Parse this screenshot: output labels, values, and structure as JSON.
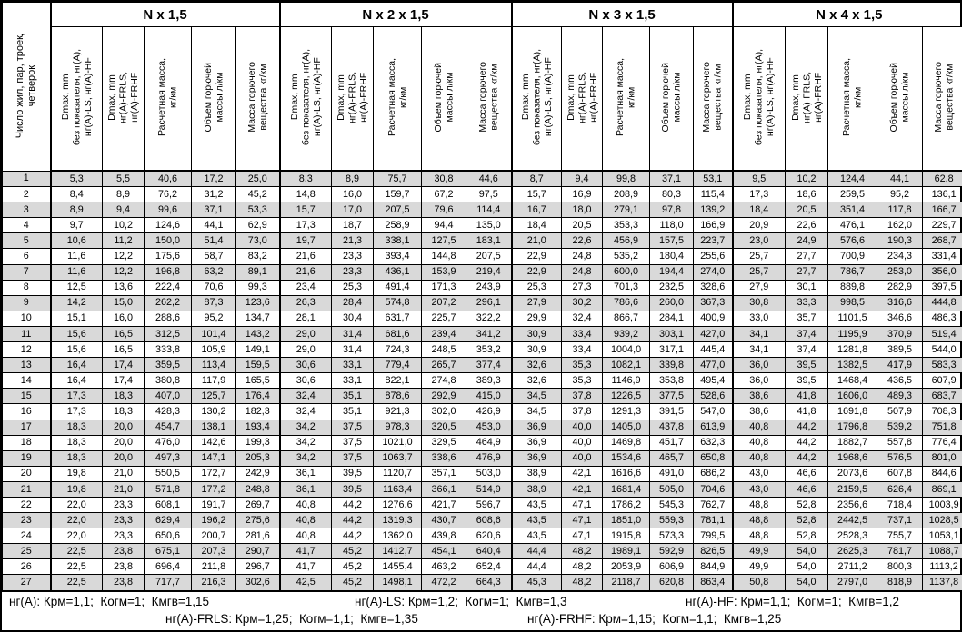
{
  "header": {
    "row_axis_label": "Число жил, пар, троек,\nчетверок",
    "groups": [
      {
        "title": "N x 1,5"
      },
      {
        "title": "N x 2 x 1,5"
      },
      {
        "title": "N x 3 x 1,5"
      },
      {
        "title": "N x 4 x 1,5"
      }
    ],
    "columns": [
      "Dmax, mm\nбез показателя, нг(А),\nнг(А)-LS, нг(А)-HF",
      "Dmax, mm\nнг(А)-FRLS,\nнг(А)-FRHF",
      "Расчетная масса,\nкг/км",
      "Объем горючей\nмассы л/км",
      "Масса горючего\nвещества кг/км"
    ]
  },
  "rows": [
    {
      "n": "1",
      "values": [
        "5,3",
        "5,5",
        "40,6",
        "17,2",
        "25,0",
        "8,3",
        "8,9",
        "75,7",
        "30,8",
        "44,6",
        "8,7",
        "9,4",
        "99,8",
        "37,1",
        "53,1",
        "9,5",
        "10,2",
        "124,4",
        "44,1",
        "62,8"
      ]
    },
    {
      "n": "2",
      "values": [
        "8,4",
        "8,9",
        "76,2",
        "31,2",
        "45,2",
        "14,8",
        "16,0",
        "159,7",
        "67,2",
        "97,5",
        "15,7",
        "16,9",
        "208,9",
        "80,3",
        "115,4",
        "17,3",
        "18,6",
        "259,5",
        "95,2",
        "136,1"
      ]
    },
    {
      "n": "3",
      "values": [
        "8,9",
        "9,4",
        "99,6",
        "37,1",
        "53,3",
        "15,7",
        "17,0",
        "207,5",
        "79,6",
        "114,4",
        "16,7",
        "18,0",
        "279,1",
        "97,8",
        "139,2",
        "18,4",
        "20,5",
        "351,4",
        "117,8",
        "166,7"
      ]
    },
    {
      "n": "4",
      "values": [
        "9,7",
        "10,2",
        "124,6",
        "44,1",
        "62,9",
        "17,3",
        "18,7",
        "258,9",
        "94,4",
        "135,0",
        "18,4",
        "20,5",
        "353,3",
        "118,0",
        "166,9",
        "20,9",
        "22,6",
        "476,1",
        "162,0",
        "229,7"
      ]
    },
    {
      "n": "5",
      "values": [
        "10,6",
        "11,2",
        "150,0",
        "51,4",
        "73,0",
        "19,7",
        "21,3",
        "338,1",
        "127,5",
        "183,1",
        "21,0",
        "22,6",
        "456,9",
        "157,5",
        "223,7",
        "23,0",
        "24,9",
        "576,6",
        "190,3",
        "268,7"
      ]
    },
    {
      "n": "6",
      "values": [
        "11,6",
        "12,2",
        "175,6",
        "58,7",
        "83,2",
        "21,6",
        "23,3",
        "393,4",
        "144,8",
        "207,5",
        "22,9",
        "24,8",
        "535,2",
        "180,4",
        "255,6",
        "25,7",
        "27,7",
        "700,9",
        "234,3",
        "331,4"
      ]
    },
    {
      "n": "7",
      "values": [
        "11,6",
        "12,2",
        "196,8",
        "63,2",
        "89,1",
        "21,6",
        "23,3",
        "436,1",
        "153,9",
        "219,4",
        "22,9",
        "24,8",
        "600,0",
        "194,4",
        "274,0",
        "25,7",
        "27,7",
        "786,7",
        "253,0",
        "356,0"
      ]
    },
    {
      "n": "8",
      "values": [
        "12,5",
        "13,6",
        "222,4",
        "70,6",
        "99,3",
        "23,4",
        "25,3",
        "491,4",
        "171,3",
        "243,9",
        "25,3",
        "27,3",
        "701,3",
        "232,5",
        "328,6",
        "27,9",
        "30,1",
        "889,8",
        "282,9",
        "397,5"
      ]
    },
    {
      "n": "9",
      "values": [
        "14,2",
        "15,0",
        "262,2",
        "87,3",
        "123,6",
        "26,3",
        "28,4",
        "574,8",
        "207,2",
        "296,1",
        "27,9",
        "30,2",
        "786,6",
        "260,0",
        "367,3",
        "30,8",
        "33,3",
        "998,5",
        "316,6",
        "444,8"
      ]
    },
    {
      "n": "10",
      "values": [
        "15,1",
        "16,0",
        "288,6",
        "95,2",
        "134,7",
        "28,1",
        "30,4",
        "631,7",
        "225,7",
        "322,2",
        "29,9",
        "32,4",
        "866,7",
        "284,1",
        "400,9",
        "33,0",
        "35,7",
        "1101,5",
        "346,6",
        "486,3"
      ]
    },
    {
      "n": "11",
      "values": [
        "15,6",
        "16,5",
        "312,5",
        "101,4",
        "143,2",
        "29,0",
        "31,4",
        "681,6",
        "239,4",
        "341,2",
        "30,9",
        "33,4",
        "939,2",
        "303,1",
        "427,0",
        "34,1",
        "37,4",
        "1195,9",
        "370,9",
        "519,4"
      ]
    },
    {
      "n": "12",
      "values": [
        "15,6",
        "16,5",
        "333,8",
        "105,9",
        "149,1",
        "29,0",
        "31,4",
        "724,3",
        "248,5",
        "353,2",
        "30,9",
        "33,4",
        "1004,0",
        "317,1",
        "445,4",
        "34,1",
        "37,4",
        "1281,8",
        "389,5",
        "544,0"
      ]
    },
    {
      "n": "13",
      "values": [
        "16,4",
        "17,4",
        "359,5",
        "113,4",
        "159,5",
        "30,6",
        "33,1",
        "779,4",
        "265,7",
        "377,4",
        "32,6",
        "35,3",
        "1082,1",
        "339,8",
        "477,0",
        "36,0",
        "39,5",
        "1382,5",
        "417,9",
        "583,3"
      ]
    },
    {
      "n": "14",
      "values": [
        "16,4",
        "17,4",
        "380,8",
        "117,9",
        "165,5",
        "30,6",
        "33,1",
        "822,1",
        "274,8",
        "389,3",
        "32,6",
        "35,3",
        "1146,9",
        "353,8",
        "495,4",
        "36,0",
        "39,5",
        "1468,4",
        "436,5",
        "607,9"
      ]
    },
    {
      "n": "15",
      "values": [
        "17,3",
        "18,3",
        "407,0",
        "125,7",
        "176,4",
        "32,4",
        "35,1",
        "878,6",
        "292,9",
        "415,0",
        "34,5",
        "37,8",
        "1226,5",
        "377,5",
        "528,6",
        "38,6",
        "41,8",
        "1606,0",
        "489,3",
        "683,7"
      ]
    },
    {
      "n": "16",
      "values": [
        "17,3",
        "18,3",
        "428,3",
        "130,2",
        "182,3",
        "32,4",
        "35,1",
        "921,3",
        "302,0",
        "426,9",
        "34,5",
        "37,8",
        "1291,3",
        "391,5",
        "547,0",
        "38,6",
        "41,8",
        "1691,8",
        "507,9",
        "708,3"
      ]
    },
    {
      "n": "17",
      "values": [
        "18,3",
        "20,0",
        "454,7",
        "138,1",
        "193,4",
        "34,2",
        "37,5",
        "978,3",
        "320,5",
        "453,0",
        "36,9",
        "40,0",
        "1405,0",
        "437,8",
        "613,9",
        "40,8",
        "44,2",
        "1796,8",
        "539,2",
        "751,8"
      ]
    },
    {
      "n": "18",
      "values": [
        "18,3",
        "20,0",
        "476,0",
        "142,6",
        "199,3",
        "34,2",
        "37,5",
        "1021,0",
        "329,5",
        "464,9",
        "36,9",
        "40,0",
        "1469,8",
        "451,7",
        "632,3",
        "40,8",
        "44,2",
        "1882,7",
        "557,8",
        "776,4"
      ]
    },
    {
      "n": "19",
      "values": [
        "18,3",
        "20,0",
        "497,3",
        "147,1",
        "205,3",
        "34,2",
        "37,5",
        "1063,7",
        "338,6",
        "476,9",
        "36,9",
        "40,0",
        "1534,6",
        "465,7",
        "650,8",
        "40,8",
        "44,2",
        "1968,6",
        "576,5",
        "801,0"
      ]
    },
    {
      "n": "20",
      "values": [
        "19,8",
        "21,0",
        "550,5",
        "172,7",
        "242,9",
        "36,1",
        "39,5",
        "1120,7",
        "357,1",
        "503,0",
        "38,9",
        "42,1",
        "1616,6",
        "491,0",
        "686,2",
        "43,0",
        "46,6",
        "2073,6",
        "607,8",
        "844,6"
      ]
    },
    {
      "n": "21",
      "values": [
        "19,8",
        "21,0",
        "571,8",
        "177,2",
        "248,8",
        "36,1",
        "39,5",
        "1163,4",
        "366,1",
        "514,9",
        "38,9",
        "42,1",
        "1681,4",
        "505,0",
        "704,6",
        "43,0",
        "46,6",
        "2159,5",
        "626,4",
        "869,1"
      ]
    },
    {
      "n": "22",
      "values": [
        "22,0",
        "23,3",
        "608,1",
        "191,7",
        "269,7",
        "40,8",
        "44,2",
        "1276,6",
        "421,7",
        "596,7",
        "43,5",
        "47,1",
        "1786,2",
        "545,3",
        "762,7",
        "48,8",
        "52,8",
        "2356,6",
        "718,4",
        "1003,9"
      ]
    },
    {
      "n": "23",
      "values": [
        "22,0",
        "23,3",
        "629,4",
        "196,2",
        "275,6",
        "40,8",
        "44,2",
        "1319,3",
        "430,7",
        "608,6",
        "43,5",
        "47,1",
        "1851,0",
        "559,3",
        "781,1",
        "48,8",
        "52,8",
        "2442,5",
        "737,1",
        "1028,5"
      ]
    },
    {
      "n": "24",
      "values": [
        "22,0",
        "23,3",
        "650,6",
        "200,7",
        "281,6",
        "40,8",
        "44,2",
        "1362,0",
        "439,8",
        "620,6",
        "43,5",
        "47,1",
        "1915,8",
        "573,3",
        "799,5",
        "48,8",
        "52,8",
        "2528,3",
        "755,7",
        "1053,1"
      ]
    },
    {
      "n": "25",
      "values": [
        "22,5",
        "23,8",
        "675,1",
        "207,3",
        "290,7",
        "41,7",
        "45,2",
        "1412,7",
        "454,1",
        "640,4",
        "44,4",
        "48,2",
        "1989,1",
        "592,9",
        "826,5",
        "49,9",
        "54,0",
        "2625,3",
        "781,7",
        "1088,7"
      ]
    },
    {
      "n": "26",
      "values": [
        "22,5",
        "23,8",
        "696,4",
        "211,8",
        "296,7",
        "41,7",
        "45,2",
        "1455,4",
        "463,2",
        "652,4",
        "44,4",
        "48,2",
        "2053,9",
        "606,9",
        "844,9",
        "49,9",
        "54,0",
        "2711,2",
        "800,3",
        "1113,2"
      ]
    },
    {
      "n": "27",
      "values": [
        "22,5",
        "23,8",
        "717,7",
        "216,3",
        "302,6",
        "42,5",
        "45,2",
        "1498,1",
        "472,2",
        "664,3",
        "45,3",
        "48,2",
        "2118,7",
        "620,8",
        "863,4",
        "50,8",
        "54,0",
        "2797,0",
        "818,9",
        "1137,8"
      ]
    }
  ],
  "footer": {
    "line1": [
      "нг(А): Крм=1,1;  Когм=1;  Кмгв=1,15",
      "нг(А)-LS: Крм=1,2;  Когм=1;  Кмгв=1,3",
      "нг(А)-HF: Крм=1,1;  Когм=1;  Кмгв=1,2"
    ],
    "line2": [
      "нг(А)-FRLS: Крм=1,25;  Когм=1,1;  Кмгв=1,35",
      "нг(А)-FRHF: Крм=1,15;  Когм=1,1;  Кмгв=1,25"
    ]
  },
  "colors": {
    "stripe": "#d9d9d9",
    "border": "#000000",
    "background": "#ffffff",
    "text": "#000000"
  }
}
